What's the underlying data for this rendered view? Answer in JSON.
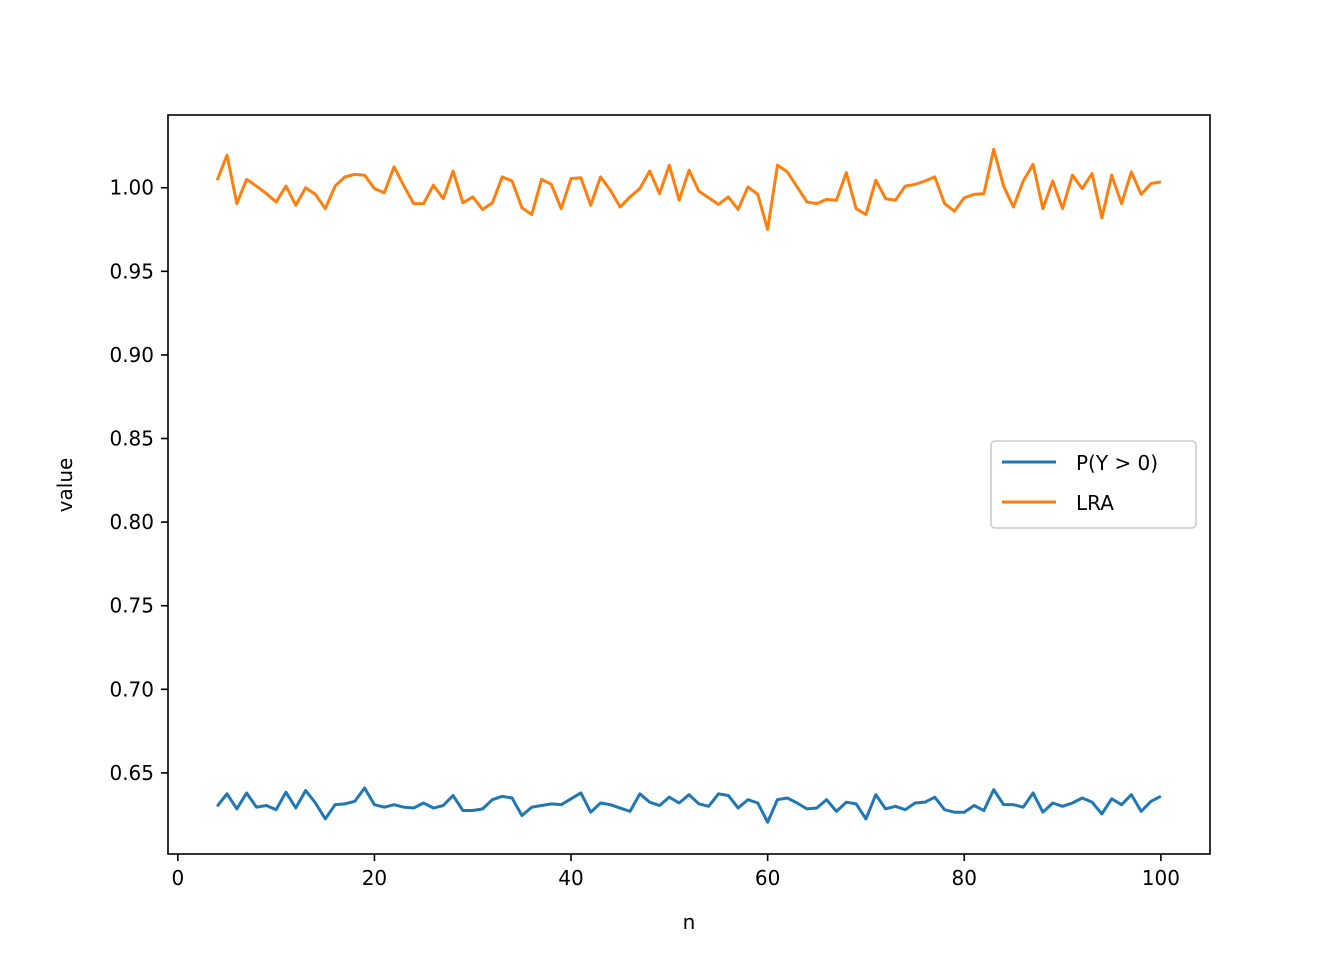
{
  "chart_data": {
    "type": "line",
    "title": "",
    "xlabel": "n",
    "ylabel": "value",
    "xlim": [
      -1,
      105
    ],
    "ylim": [
      0.6015,
      1.0435
    ],
    "xticks": [
      0,
      20,
      40,
      60,
      80,
      100
    ],
    "yticks": [
      0.65,
      0.7,
      0.75,
      0.8,
      0.85,
      0.9,
      0.95,
      1.0
    ],
    "ytick_labels": [
      "0.65",
      "0.70",
      "0.75",
      "0.80",
      "0.85",
      "0.90",
      "0.95",
      "1.00"
    ],
    "grid": false,
    "legend_position": "center-right",
    "x": [
      4,
      5,
      6,
      7,
      8,
      9,
      10,
      11,
      12,
      13,
      14,
      15,
      16,
      17,
      18,
      19,
      20,
      21,
      22,
      23,
      24,
      25,
      26,
      27,
      28,
      29,
      30,
      31,
      32,
      33,
      34,
      35,
      36,
      37,
      38,
      39,
      40,
      41,
      42,
      43,
      44,
      45,
      46,
      47,
      48,
      49,
      50,
      51,
      52,
      53,
      54,
      55,
      56,
      57,
      58,
      59,
      60,
      61,
      62,
      63,
      64,
      65,
      66,
      67,
      68,
      69,
      70,
      71,
      72,
      73,
      74,
      75,
      76,
      77,
      78,
      79,
      80,
      81,
      82,
      83,
      84,
      85,
      86,
      87,
      88,
      89,
      90,
      91,
      92,
      93,
      94,
      95,
      96,
      97,
      98,
      99,
      100
    ],
    "series": [
      {
        "name": "P(Y > 0)",
        "color": "#1f77b4",
        "values": [
          0.63,
          0.6375,
          0.6285,
          0.638,
          0.6295,
          0.6305,
          0.628,
          0.6385,
          0.629,
          0.6395,
          0.632,
          0.6225,
          0.631,
          0.6315,
          0.633,
          0.641,
          0.631,
          0.6295,
          0.631,
          0.6295,
          0.629,
          0.632,
          0.629,
          0.6305,
          0.6365,
          0.6275,
          0.6275,
          0.6285,
          0.634,
          0.636,
          0.635,
          0.6245,
          0.6295,
          0.6305,
          0.6315,
          0.631,
          0.6345,
          0.638,
          0.6265,
          0.632,
          0.631,
          0.629,
          0.627,
          0.6375,
          0.6325,
          0.6305,
          0.6355,
          0.632,
          0.637,
          0.6315,
          0.63,
          0.6375,
          0.6365,
          0.629,
          0.634,
          0.632,
          0.6205,
          0.634,
          0.635,
          0.632,
          0.6285,
          0.629,
          0.634,
          0.627,
          0.6325,
          0.6315,
          0.6225,
          0.637,
          0.6285,
          0.63,
          0.628,
          0.632,
          0.6325,
          0.6355,
          0.628,
          0.6265,
          0.6265,
          0.6305,
          0.6275,
          0.64,
          0.631,
          0.631,
          0.6295,
          0.638,
          0.6265,
          0.632,
          0.63,
          0.632,
          0.635,
          0.6325,
          0.6255,
          0.6345,
          0.631,
          0.637,
          0.627,
          0.633,
          0.636
        ]
      },
      {
        "name": "LRA",
        "color": "#ff7f0e",
        "values": [
          1.0045,
          1.0195,
          0.9905,
          1.005,
          1.001,
          0.9965,
          0.9915,
          1.001,
          0.9895,
          1.0,
          0.996,
          0.9875,
          1.001,
          1.0065,
          1.008,
          1.0075,
          0.9995,
          0.997,
          1.0125,
          1.001,
          0.9905,
          0.9905,
          1.0015,
          0.9935,
          1.01,
          0.991,
          0.9945,
          0.987,
          0.991,
          1.0065,
          1.004,
          0.988,
          0.984,
          1.005,
          1.002,
          0.9875,
          1.0055,
          1.006,
          0.9895,
          1.0065,
          0.9985,
          0.9885,
          0.9945,
          0.9995,
          1.01,
          0.9965,
          1.0135,
          0.9925,
          1.0105,
          0.998,
          0.994,
          0.99,
          0.9945,
          0.987,
          1.0005,
          0.996,
          0.975,
          1.0135,
          1.0095,
          1.0005,
          0.9915,
          0.9905,
          0.993,
          0.9925,
          1.009,
          0.9875,
          0.984,
          1.0045,
          0.9935,
          0.9925,
          1.001,
          1.002,
          1.004,
          1.0065,
          0.9905,
          0.986,
          0.994,
          0.996,
          0.9965,
          1.023,
          1.001,
          0.9885,
          1.004,
          1.014,
          0.9875,
          1.004,
          0.9875,
          1.0075,
          0.9995,
          1.0085,
          0.982,
          1.0075,
          0.9905,
          1.0095,
          0.996,
          1.0025,
          1.0035
        ]
      }
    ]
  }
}
